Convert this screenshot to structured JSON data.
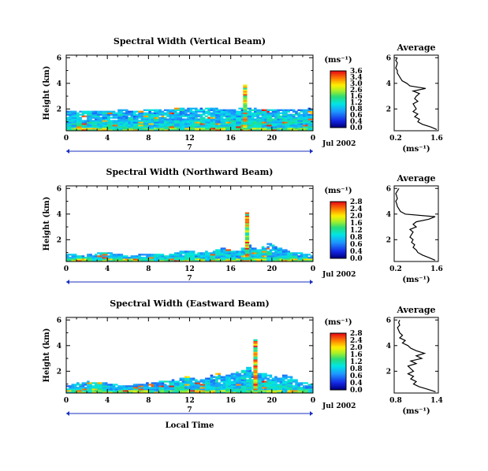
{
  "chart_data": [
    {
      "type": "heatmap",
      "title": "Spectral Width (Vertical Beam)",
      "ylabel": "Height (km)",
      "x_ticks": [
        "0",
        "4",
        "8",
        "12",
        "16",
        "20",
        "0"
      ],
      "y_ticks": [
        "6",
        "4",
        "2"
      ],
      "xlim": [
        0,
        24
      ],
      "ylim": [
        0.3,
        6.2
      ],
      "date_mid": "7",
      "date_label": "Jul 2002",
      "colorbar": {
        "label": "(ms⁻¹)",
        "ticks": [
          "3.6",
          "3.4",
          "3.0",
          "2.6",
          "1.6",
          "1.2",
          "0.8",
          "0.6",
          "0.4",
          "0.0"
        ]
      },
      "layer_top_km": [
        1.9,
        1.9,
        1.9,
        1.9,
        1.9,
        1.85,
        1.85,
        1.85,
        1.9,
        1.9,
        1.95,
        1.95,
        1.9,
        1.9,
        1.9,
        2.0,
        2.0,
        2.0,
        2.0,
        2.0,
        2.0,
        2.05,
        2.05,
        2.05,
        2.1,
        2.1,
        2.1,
        2.1,
        2.1,
        2.1,
        2.0,
        2.0,
        2.0,
        2.1,
        2.1,
        2.1,
        2.1,
        2.0,
        2.0,
        2.0,
        2.0,
        2.0,
        2.0,
        2.0,
        2.0,
        2.0,
        2.0,
        2.05
      ],
      "spike_hours": [
        17.2,
        17.6
      ],
      "spike_top_km": 3.8,
      "average_profile": {
        "title": "Average",
        "xlabel": "(ms⁻¹)",
        "x_ticks": [
          "0.2",
          "1.6"
        ],
        "xlim": [
          0.2,
          1.6
        ],
        "y_ticks": [
          "6",
          "4",
          "2"
        ],
        "ylim": [
          0.3,
          6.2
        ],
        "height_km": [
          0.4,
          0.6,
          0.8,
          1.0,
          1.2,
          1.4,
          1.6,
          1.8,
          2.0,
          2.2,
          2.4,
          2.6,
          2.8,
          3.0,
          3.2,
          3.4,
          3.6,
          3.8,
          4.0,
          4.2,
          4.4,
          4.6,
          4.8,
          5.0,
          5.2,
          5.4,
          5.6,
          5.8,
          6.0
        ],
        "width_ms": [
          1.55,
          1.35,
          1.1,
          0.95,
          1.0,
          0.85,
          0.95,
          0.8,
          0.9,
          0.85,
          0.8,
          0.95,
          0.85,
          0.9,
          1.0,
          0.8,
          1.2,
          0.7,
          0.6,
          0.45,
          0.4,
          0.35,
          0.3,
          0.3,
          0.25,
          0.28,
          0.3,
          0.25,
          0.3
        ]
      }
    },
    {
      "type": "heatmap",
      "title": "Spectral Width (Northward Beam)",
      "ylabel": "Height (km)",
      "x_ticks": [
        "0",
        "4",
        "8",
        "12",
        "16",
        "20",
        "0"
      ],
      "y_ticks": [
        "6",
        "4",
        "2"
      ],
      "xlim": [
        0,
        24
      ],
      "ylim": [
        0.3,
        6.2
      ],
      "date_mid": "7",
      "date_label": "Jul 2002",
      "colorbar": {
        "label": "(ms⁻¹)",
        "ticks": [
          "2.8",
          "2.4",
          "2.0",
          "1.6",
          "1.2",
          "0.8",
          "0.6",
          "0.4",
          "0.0"
        ]
      },
      "layer_top_km": [
        0.9,
        0.9,
        0.8,
        0.8,
        0.85,
        0.9,
        1.0,
        1.1,
        1.0,
        0.9,
        0.85,
        0.8,
        0.8,
        0.8,
        0.85,
        0.9,
        0.9,
        0.9,
        0.85,
        0.8,
        0.9,
        1.0,
        1.1,
        1.2,
        1.1,
        1.0,
        1.0,
        1.1,
        1.2,
        1.3,
        1.4,
        1.3,
        1.2,
        1.1,
        1.4,
        1.6,
        1.4,
        1.3,
        1.5,
        1.7,
        1.6,
        1.4,
        1.3,
        1.1,
        1.0,
        1.0,
        0.9,
        0.9
      ],
      "spike_hours": [
        17.4,
        17.8
      ],
      "spike_top_km": 4.1,
      "average_profile": {
        "title": "Average",
        "xlabel": "(ms⁻¹)",
        "x_ticks": [
          "0.2",
          "1.6"
        ],
        "xlim": [
          0.2,
          1.6
        ],
        "y_ticks": [
          "6",
          "4",
          "2"
        ],
        "ylim": [
          0.3,
          6.2
        ],
        "height_km": [
          0.4,
          0.6,
          0.8,
          1.0,
          1.2,
          1.4,
          1.6,
          1.8,
          2.0,
          2.2,
          2.4,
          2.6,
          2.8,
          3.0,
          3.2,
          3.4,
          3.6,
          3.8,
          4.0,
          4.2,
          4.4,
          4.6,
          4.8,
          5.0,
          5.2,
          5.4,
          5.6,
          5.8,
          6.0
        ],
        "width_ms": [
          1.5,
          1.3,
          1.1,
          0.95,
          0.9,
          0.8,
          0.85,
          0.75,
          0.8,
          0.7,
          0.75,
          0.8,
          0.7,
          0.9,
          0.8,
          0.9,
          1.3,
          1.5,
          0.55,
          0.4,
          0.35,
          0.3,
          0.28,
          0.25,
          0.3,
          0.28,
          0.25,
          0.3,
          0.35
        ]
      }
    },
    {
      "type": "heatmap",
      "title": "Spectral Width (Eastward Beam)",
      "ylabel": "Height (km)",
      "xlabel": "Local Time",
      "x_ticks": [
        "0",
        "4",
        "8",
        "12",
        "16",
        "20",
        "0"
      ],
      "y_ticks": [
        "6",
        "4",
        "2"
      ],
      "xlim": [
        0,
        24
      ],
      "ylim": [
        0.3,
        6.2
      ],
      "date_mid": "7",
      "date_label": "Jul 2002",
      "colorbar": {
        "label": "(ms⁻¹)",
        "ticks": [
          "2.8",
          "2.4",
          "2.0",
          "1.6",
          "1.2",
          "0.8",
          "0.6",
          "0.4",
          "0.0"
        ]
      },
      "layer_top_km": [
        0.9,
        1.0,
        1.1,
        1.2,
        1.3,
        1.2,
        1.2,
        1.1,
        1.0,
        1.0,
        0.9,
        0.9,
        0.95,
        1.0,
        1.0,
        1.1,
        1.1,
        1.2,
        1.3,
        1.3,
        1.4,
        1.3,
        1.5,
        1.6,
        1.5,
        1.4,
        1.4,
        1.5,
        1.7,
        1.8,
        1.6,
        1.7,
        1.9,
        2.0,
        2.1,
        2.3,
        2.0,
        1.9,
        1.8,
        1.7,
        1.6,
        1.5,
        1.7,
        1.6,
        1.4,
        1.2,
        1.1,
        1.0
      ],
      "spike_hours": [
        18.2,
        18.6
      ],
      "spike_top_km": 4.5,
      "average_profile": {
        "title": "Average",
        "xlabel": "(ms⁻¹)",
        "x_ticks": [
          "0.8",
          "1.4"
        ],
        "xlim": [
          0.7,
          1.5
        ],
        "y_ticks": [
          "6",
          "4",
          "2"
        ],
        "ylim": [
          0.3,
          6.2
        ],
        "height_km": [
          0.4,
          0.6,
          0.8,
          1.0,
          1.2,
          1.4,
          1.6,
          1.8,
          2.0,
          2.2,
          2.4,
          2.6,
          2.8,
          3.0,
          3.2,
          3.4,
          3.6,
          3.8,
          4.0,
          4.2,
          4.4,
          4.6,
          4.8,
          5.0,
          5.2,
          5.4,
          5.6,
          5.8,
          6.0
        ],
        "width_ms": [
          1.45,
          1.3,
          1.15,
          1.05,
          1.1,
          1.0,
          1.05,
          0.95,
          1.05,
          1.0,
          0.95,
          1.1,
          1.0,
          1.2,
          1.1,
          1.25,
          1.1,
          1.0,
          0.95,
          0.85,
          0.9,
          0.8,
          0.85,
          0.8,
          0.78,
          0.76,
          0.8,
          0.78,
          0.8
        ]
      }
    }
  ]
}
